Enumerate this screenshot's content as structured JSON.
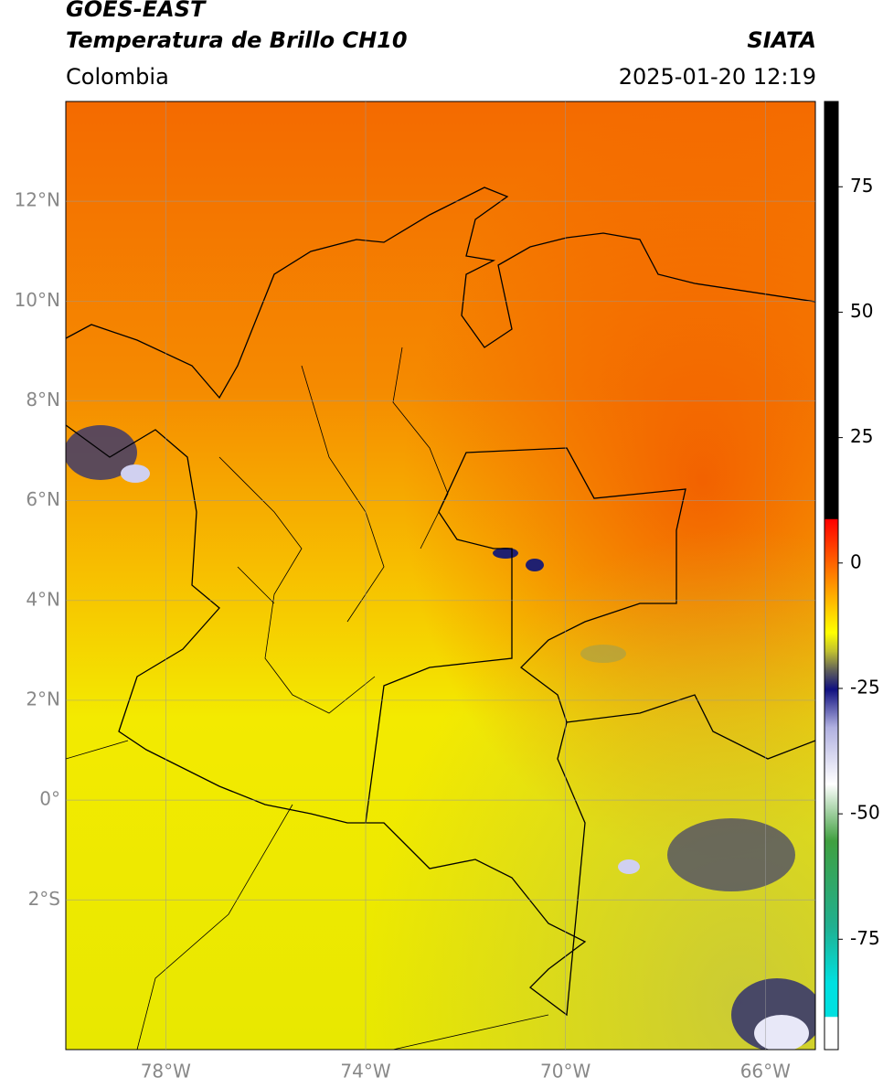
{
  "header": {
    "title": "GOES-EAST",
    "subtitle": "Temperatura de Brillo CH10",
    "source": "SIATA",
    "region": "Colombia",
    "datetime": "2025-01-20 12:19"
  },
  "map": {
    "xlim": [
      -80,
      -65
    ],
    "ylim": [
      -5,
      14
    ],
    "grid": true,
    "xticks": [
      {
        "value": -78,
        "label": "78°W"
      },
      {
        "value": -74,
        "label": "74°W"
      },
      {
        "value": -70,
        "label": "70°W"
      },
      {
        "value": -66,
        "label": "66°W"
      }
    ],
    "yticks": [
      {
        "value": 12,
        "label": "12°N"
      },
      {
        "value": 10,
        "label": "10°N"
      },
      {
        "value": 8,
        "label": "8°N"
      },
      {
        "value": 6,
        "label": "6°N"
      },
      {
        "value": 4,
        "label": "4°N"
      },
      {
        "value": 2,
        "label": "2°N"
      },
      {
        "value": 0,
        "label": "0°"
      },
      {
        "value": -2,
        "label": "2°S"
      }
    ]
  },
  "colorbar": {
    "lim": [
      -97,
      92
    ],
    "ticks": [
      75,
      50,
      25,
      0,
      -25,
      -50,
      -75
    ]
  }
}
